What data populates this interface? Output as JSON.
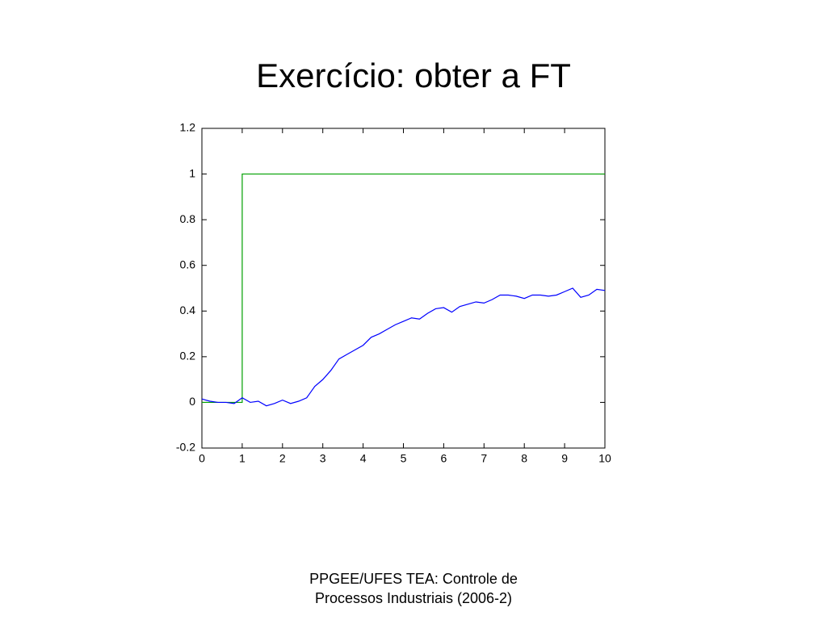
{
  "chart_data": {
    "type": "line",
    "title": "Exercício: obter a FT",
    "series": [
      {
        "color": "#00a000",
        "x": [
          0,
          1,
          1,
          10
        ],
        "values": [
          0,
          0,
          1,
          1
        ]
      },
      {
        "color": "#0000ff",
        "x": [
          0,
          0.2,
          0.4,
          0.6,
          0.8,
          1.0,
          1.2,
          1.4,
          1.6,
          1.8,
          2.0,
          2.2,
          2.4,
          2.6,
          2.8,
          3.0,
          3.2,
          3.4,
          3.6,
          3.8,
          4.0,
          4.2,
          4.4,
          4.6,
          4.8,
          5.0,
          5.2,
          5.4,
          5.6,
          5.8,
          6.0,
          6.2,
          6.4,
          6.6,
          6.8,
          7.0,
          7.2,
          7.4,
          7.6,
          7.8,
          8.0,
          8.2,
          8.4,
          8.6,
          8.8,
          9.0,
          9.2,
          9.4,
          9.6,
          9.8,
          10.0
        ],
        "values": [
          0.015,
          0.005,
          0.0,
          0.0,
          -0.005,
          0.02,
          0.0,
          0.005,
          -0.015,
          -0.005,
          0.01,
          -0.005,
          0.005,
          0.02,
          0.07,
          0.1,
          0.14,
          0.19,
          0.21,
          0.23,
          0.25,
          0.285,
          0.3,
          0.32,
          0.34,
          0.355,
          0.37,
          0.365,
          0.39,
          0.41,
          0.415,
          0.395,
          0.42,
          0.43,
          0.44,
          0.435,
          0.45,
          0.47,
          0.47,
          0.465,
          0.455,
          0.47,
          0.47,
          0.465,
          0.47,
          0.485,
          0.5,
          0.46,
          0.47,
          0.495,
          0.49
        ]
      }
    ],
    "xlim": [
      0,
      10
    ],
    "xticks": [
      0,
      1,
      2,
      3,
      4,
      5,
      6,
      7,
      8,
      9,
      10
    ],
    "ylim": [
      -0.2,
      1.2
    ],
    "yticks": [
      -0.2,
      0,
      0.2,
      0.4,
      0.6,
      0.8,
      1,
      1.2
    ],
    "grid": false
  },
  "footer": [
    "PPGEE/UFES TEA: Controle de",
    "Processos Industriais (2006-2)"
  ]
}
